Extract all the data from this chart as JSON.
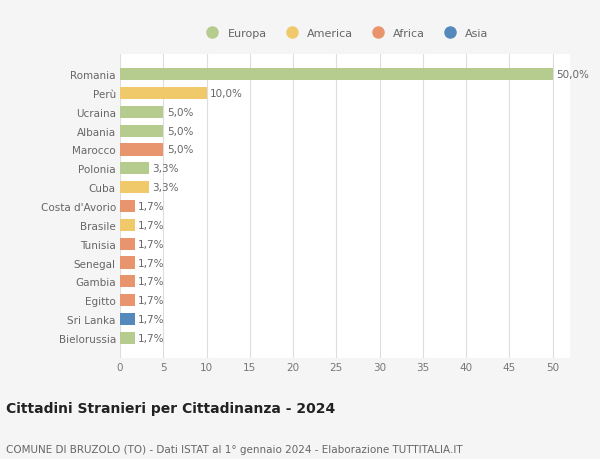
{
  "countries": [
    "Romania",
    "Perù",
    "Ucraina",
    "Albania",
    "Marocco",
    "Polonia",
    "Cuba",
    "Costa d'Avorio",
    "Brasile",
    "Tunisia",
    "Senegal",
    "Gambia",
    "Egitto",
    "Sri Lanka",
    "Bielorussia"
  ],
  "values": [
    50.0,
    10.0,
    5.0,
    5.0,
    5.0,
    3.3,
    3.3,
    1.7,
    1.7,
    1.7,
    1.7,
    1.7,
    1.7,
    1.7,
    1.7
  ],
  "labels": [
    "50,0%",
    "10,0%",
    "5,0%",
    "5,0%",
    "5,0%",
    "3,3%",
    "3,3%",
    "1,7%",
    "1,7%",
    "1,7%",
    "1,7%",
    "1,7%",
    "1,7%",
    "1,7%",
    "1,7%"
  ],
  "continents": [
    "Europa",
    "America",
    "Europa",
    "Europa",
    "Africa",
    "Europa",
    "America",
    "Africa",
    "America",
    "Africa",
    "Africa",
    "Africa",
    "Africa",
    "Asia",
    "Europa"
  ],
  "continent_colors": {
    "Europa": "#b5cc8e",
    "America": "#f0c96a",
    "Africa": "#e8956d",
    "Asia": "#5588bb"
  },
  "legend_order": [
    "Europa",
    "America",
    "Africa",
    "Asia"
  ],
  "legend_colors": [
    "#b5cc8e",
    "#f0c96a",
    "#e8956d",
    "#5588bb"
  ],
  "xlim": [
    0,
    52
  ],
  "xticks": [
    0,
    5,
    10,
    15,
    20,
    25,
    30,
    35,
    40,
    45,
    50
  ],
  "title": "Cittadini Stranieri per Cittadinanza - 2024",
  "subtitle": "COMUNE DI BRUZOLO (TO) - Dati ISTAT al 1° gennaio 2024 - Elaborazione TUTTITALIA.IT",
  "bg_color": "#f5f5f5",
  "plot_bg_color": "#ffffff",
  "grid_color": "#dddddd",
  "bar_height": 0.65,
  "label_fontsize": 7.5,
  "tick_fontsize": 7.5,
  "title_fontsize": 10,
  "subtitle_fontsize": 7.5
}
